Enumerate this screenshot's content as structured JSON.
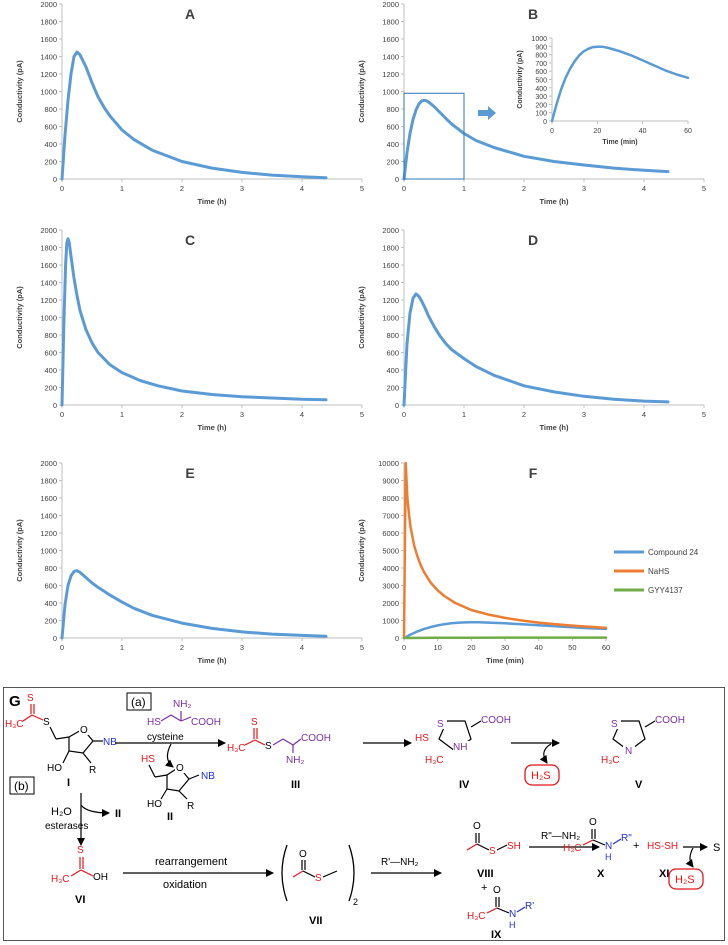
{
  "chart_data": [
    {
      "panel": "A",
      "type": "line",
      "xlabel": "Time (h)",
      "ylabel": "Conductivity (pA)",
      "xlim": [
        0,
        5
      ],
      "ylim": [
        0,
        2000
      ],
      "xticks": [
        0,
        1,
        2,
        3,
        4,
        5
      ],
      "yticks": [
        0,
        200,
        400,
        600,
        800,
        1000,
        1200,
        1400,
        1600,
        1800,
        2000
      ],
      "color": "#5b9bd5",
      "x": [
        0,
        0.05,
        0.1,
        0.15,
        0.2,
        0.25,
        0.3,
        0.4,
        0.5,
        0.6,
        0.7,
        0.8,
        1.0,
        1.2,
        1.5,
        2.0,
        2.5,
        3.0,
        3.5,
        4.0,
        4.4
      ],
      "y": [
        0,
        500,
        900,
        1200,
        1400,
        1450,
        1420,
        1280,
        1100,
        940,
        820,
        720,
        560,
        450,
        330,
        200,
        125,
        75,
        45,
        25,
        15
      ]
    },
    {
      "panel": "B",
      "type": "line",
      "xlabel": "Time (h)",
      "ylabel": "Conductivity (pA)",
      "xlim": [
        0,
        5
      ],
      "ylim": [
        0,
        2000
      ],
      "xticks": [
        0,
        1,
        2,
        3,
        4,
        5
      ],
      "yticks": [
        0,
        200,
        400,
        600,
        800,
        1000,
        1200,
        1400,
        1600,
        1800,
        2000
      ],
      "color": "#5b9bd5",
      "x": [
        0,
        0.05,
        0.1,
        0.15,
        0.2,
        0.25,
        0.3,
        0.35,
        0.4,
        0.5,
        0.6,
        0.7,
        0.8,
        1.0,
        1.2,
        1.5,
        2.0,
        2.5,
        3.0,
        3.5,
        4.0,
        4.4
      ],
      "y": [
        0,
        300,
        520,
        680,
        790,
        860,
        895,
        900,
        885,
        830,
        760,
        690,
        625,
        520,
        440,
        360,
        260,
        200,
        160,
        125,
        100,
        85
      ],
      "inset": {
        "xlabel": "Time (min)",
        "ylabel": "Conductivity (pA)",
        "xlim": [
          0,
          60
        ],
        "ylim": [
          0,
          1000
        ],
        "xticks": [
          0,
          20,
          40,
          60
        ],
        "yticks": [
          0,
          100,
          200,
          300,
          400,
          500,
          600,
          700,
          800,
          900,
          1000
        ],
        "x": [
          0,
          2,
          4,
          6,
          8,
          10,
          12,
          14,
          16,
          18,
          20,
          22,
          25,
          30,
          35,
          40,
          45,
          50,
          55,
          60
        ],
        "y": [
          0,
          200,
          380,
          520,
          630,
          720,
          790,
          840,
          870,
          890,
          895,
          895,
          880,
          840,
          790,
          730,
          670,
          610,
          560,
          520
        ]
      }
    },
    {
      "panel": "C",
      "type": "line",
      "xlabel": "Time (h)",
      "ylabel": "Conductivity (pA)",
      "xlim": [
        0,
        5
      ],
      "ylim": [
        0,
        2000
      ],
      "xticks": [
        0,
        1,
        2,
        3,
        4,
        5
      ],
      "yticks": [
        0,
        200,
        400,
        600,
        800,
        1000,
        1200,
        1400,
        1600,
        1800,
        2000
      ],
      "color": "#5b9bd5",
      "x": [
        0,
        0.03,
        0.06,
        0.08,
        0.1,
        0.12,
        0.15,
        0.2,
        0.25,
        0.3,
        0.4,
        0.5,
        0.6,
        0.8,
        1.0,
        1.3,
        1.6,
        2.0,
        2.5,
        3.0,
        3.5,
        4.0,
        4.4
      ],
      "y": [
        0,
        900,
        1600,
        1850,
        1900,
        1860,
        1700,
        1450,
        1250,
        1080,
        860,
        710,
        600,
        460,
        370,
        280,
        220,
        160,
        120,
        95,
        80,
        65,
        60
      ]
    },
    {
      "panel": "D",
      "type": "line",
      "xlabel": "Time (h)",
      "ylabel": "Conductivity (pA)",
      "xlim": [
        0,
        5
      ],
      "ylim": [
        0,
        2000
      ],
      "xticks": [
        0,
        1,
        2,
        3,
        4,
        5
      ],
      "yticks": [
        0,
        200,
        400,
        600,
        800,
        1000,
        1200,
        1400,
        1600,
        1800,
        2000
      ],
      "color": "#5b9bd5",
      "x": [
        0,
        0.05,
        0.1,
        0.15,
        0.2,
        0.25,
        0.3,
        0.35,
        0.4,
        0.5,
        0.6,
        0.7,
        0.8,
        1.0,
        1.2,
        1.5,
        2.0,
        2.5,
        3.0,
        3.5,
        4.0,
        4.4
      ],
      "y": [
        0,
        700,
        1050,
        1220,
        1270,
        1240,
        1180,
        1110,
        1030,
        900,
        790,
        700,
        630,
        530,
        440,
        340,
        220,
        150,
        100,
        65,
        45,
        35
      ]
    },
    {
      "panel": "E",
      "type": "line",
      "xlabel": "Time (h)",
      "ylabel": "Conductivity (pA)",
      "xlim": [
        0,
        5
      ],
      "ylim": [
        0,
        2000
      ],
      "xticks": [
        0,
        1,
        2,
        3,
        4,
        5
      ],
      "yticks": [
        0,
        200,
        400,
        600,
        800,
        1000,
        1200,
        1400,
        1600,
        1800,
        2000
      ],
      "color": "#5b9bd5",
      "x": [
        0,
        0.05,
        0.1,
        0.15,
        0.2,
        0.25,
        0.3,
        0.4,
        0.5,
        0.6,
        0.8,
        1.0,
        1.2,
        1.5,
        2.0,
        2.5,
        3.0,
        3.5,
        4.0,
        4.4
      ],
      "y": [
        0,
        380,
        600,
        710,
        760,
        770,
        750,
        690,
        630,
        580,
        490,
        410,
        340,
        260,
        170,
        110,
        70,
        45,
        30,
        20
      ]
    },
    {
      "panel": "F",
      "type": "line",
      "xlabel": "Time (min)",
      "ylabel": "Conductivity (pA)",
      "xlim": [
        0,
        60
      ],
      "ylim": [
        0,
        10000
      ],
      "xticks": [
        0,
        10,
        20,
        30,
        40,
        50,
        60
      ],
      "yticks": [
        0,
        1000,
        2000,
        3000,
        4000,
        5000,
        6000,
        7000,
        8000,
        9000,
        10000
      ],
      "legend": "right",
      "series": [
        {
          "name": "Compound 24",
          "color": "#5b9bd5",
          "x": [
            0,
            2,
            4,
            6,
            8,
            10,
            12,
            14,
            16,
            18,
            20,
            22,
            25,
            30,
            35,
            40,
            45,
            50,
            55,
            60
          ],
          "y": [
            0,
            200,
            380,
            520,
            630,
            720,
            790,
            840,
            870,
            890,
            895,
            895,
            880,
            840,
            790,
            730,
            670,
            610,
            560,
            520
          ]
        },
        {
          "name": "NaHS",
          "color": "#ed7d31",
          "x": [
            0,
            0.5,
            1,
            1.5,
            2,
            3,
            4,
            5,
            6,
            8,
            10,
            12,
            15,
            20,
            25,
            30,
            35,
            40,
            45,
            50,
            55,
            60
          ],
          "y": [
            0,
            10000,
            8000,
            7000,
            6300,
            5300,
            4650,
            4150,
            3750,
            3150,
            2720,
            2400,
            2020,
            1600,
            1340,
            1150,
            1000,
            880,
            790,
            710,
            640,
            580
          ]
        },
        {
          "name": "GYY4137",
          "color": "#70ad47",
          "x": [
            0,
            10,
            20,
            30,
            40,
            50,
            60
          ],
          "y": [
            0,
            10,
            15,
            20,
            20,
            25,
            25
          ]
        }
      ]
    }
  ],
  "scheme": {
    "panel_label": "G",
    "pathway_a_label": "(a)",
    "pathway_b_label": "(b)",
    "reagent_cysteine": "cysteine",
    "reagent_water": "H₂O",
    "reagent_esterases": "esterases",
    "arrow_rearrangement": "rearrangement",
    "arrow_oxidation": "oxidation",
    "reagent_amine_1": "R'—NH₂",
    "reagent_amine_2": "R\"—NH₂",
    "product_h2s": "H₂S",
    "product_sulfur": "S",
    "plus": "+",
    "compounds": [
      "I",
      "II",
      "III",
      "IV",
      "V",
      "VI",
      "VII",
      "VIII",
      "IX",
      "X",
      "XI"
    ],
    "dimer_subscript": "2",
    "persulfide": "HS-SH",
    "group_nb": "NB",
    "group_r": "R",
    "group_ho": "HO",
    "group_hs": "HS",
    "group_h3c": "H₃C",
    "group_cooh": "COOH",
    "group_nh2": "NH₂",
    "group_nh": "NH",
    "group_n": "N",
    "group_h": "H",
    "group_r1": "R'",
    "group_r2": "R\"",
    "atom_o": "O",
    "atom_s": "S",
    "group_sh": "SH",
    "group_oh": "OH"
  },
  "colors": {
    "red": "#e8141b",
    "blue": "#1f2fd6",
    "purple": "#7b2fa8",
    "black": "#000000"
  }
}
